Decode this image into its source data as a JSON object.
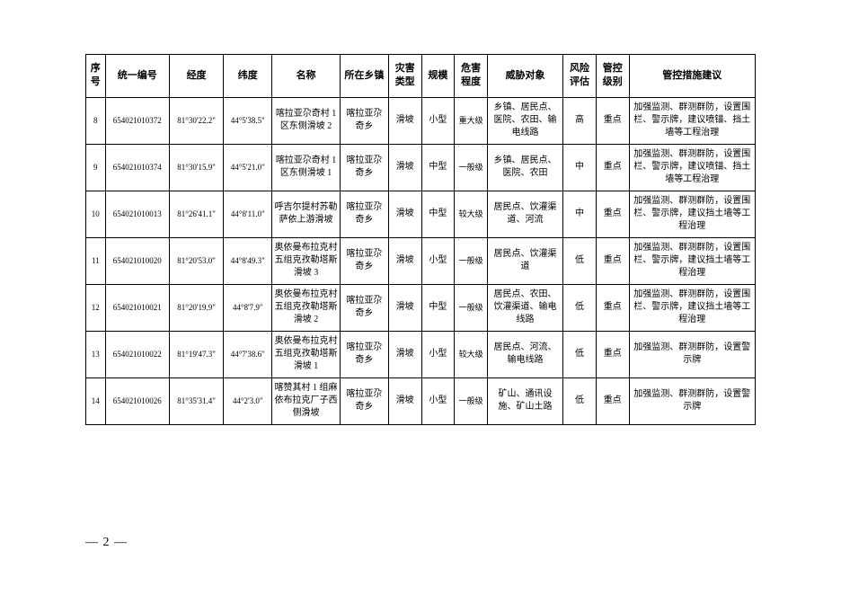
{
  "table": {
    "columns": [
      "序号",
      "统一编号",
      "经度",
      "纬度",
      "名称",
      "所在乡镇",
      "灾害类型",
      "规模",
      "危害程度",
      "威胁对象",
      "风险评估",
      "管控级别",
      "管控措施建议"
    ],
    "rows": [
      {
        "seq": "8",
        "id": "654021010372",
        "lon": "81°30'22.2\"",
        "lat": "44°5'38.5\"",
        "name": "喀拉亚尕奇村 1 区东侧滑坡 2",
        "town": "喀拉亚尕奇乡",
        "type": "滑坡",
        "scale": "小型",
        "level": "重大级",
        "threat": "乡镇、居民点、医院、农田、输电线路",
        "risk": "高",
        "ctrl": "重点",
        "suggest": "加强监测、群测群防，设置围栏、警示牌，建议喷锚、挡土墙等工程治理"
      },
      {
        "seq": "9",
        "id": "654021010374",
        "lon": "81°30'15.9\"",
        "lat": "44°5'21.0\"",
        "name": "喀拉亚尕奇村 1 区东侧滑坡 1",
        "town": "喀拉亚尕奇乡",
        "type": "滑坡",
        "scale": "中型",
        "level": "一般级",
        "threat": "乡镇、居民点、医院、农田",
        "risk": "中",
        "ctrl": "重点",
        "suggest": "加强监测、群测群防，设置围栏、警示牌，建议喷锚、挡土墙等工程治理"
      },
      {
        "seq": "10",
        "id": "654021010013",
        "lon": "81°26'41.1\"",
        "lat": "44°8'11.0\"",
        "name": "呼吉尔提村苏勒萨依上游滑坡",
        "town": "喀拉亚尕奇乡",
        "type": "滑坡",
        "scale": "中型",
        "level": "较大级",
        "threat": "居民点、饮灌渠道、河流",
        "risk": "中",
        "ctrl": "重点",
        "suggest": "加强监测、群测群防，设置围栏、警示牌，建议挡土墙等工程治理"
      },
      {
        "seq": "11",
        "id": "654021010020",
        "lon": "81°20'53.0\"",
        "lat": "44°8'49.3\"",
        "name": "奥依曼布拉克村五组克孜勒塔斯滑坡 3",
        "town": "喀拉亚尕奇乡",
        "type": "滑坡",
        "scale": "小型",
        "level": "一般级",
        "threat": "居民点、饮灌渠道",
        "risk": "低",
        "ctrl": "重点",
        "suggest": "加强监测、群测群防，设置围栏、警示牌，建议挡土墙等工程治理"
      },
      {
        "seq": "12",
        "id": "654021010021",
        "lon": "81°20'19.9\"",
        "lat": "44°8'7.9\"",
        "name": "奥依曼布拉克村五组克孜勒塔斯滑坡 2",
        "town": "喀拉亚尕奇乡",
        "type": "滑坡",
        "scale": "中型",
        "level": "一般级",
        "threat": "居民点、农田、饮灌渠道、输电线路",
        "risk": "低",
        "ctrl": "重点",
        "suggest": "加强监测、群测群防，设置围栏、警示牌，建议挡土墙等工程治理"
      },
      {
        "seq": "13",
        "id": "654021010022",
        "lon": "81°19'47.3\"",
        "lat": "44°7'38.6\"",
        "name": "奥依曼布拉克村五组克孜勒塔斯滑坡 1",
        "town": "喀拉亚尕奇乡",
        "type": "滑坡",
        "scale": "小型",
        "level": "较大级",
        "threat": "居民点、河流、输电线路",
        "risk": "低",
        "ctrl": "重点",
        "suggest": "加强监测、群测群防，设置警示牌"
      },
      {
        "seq": "14",
        "id": "654021010026",
        "lon": "81°35'31.4\"",
        "lat": "44°2'3.0\"",
        "name": "喀赞其村 1 组麻依布拉克厂子西侧滑坡",
        "town": "喀拉亚尕奇乡",
        "type": "滑坡",
        "scale": "小型",
        "level": "一般级",
        "threat": "矿山、通讯设施、矿山土路",
        "risk": "低",
        "ctrl": "重点",
        "suggest": "加强监测、群测群防，设置警示牌"
      }
    ]
  },
  "footer": {
    "page": "— 2 —"
  }
}
